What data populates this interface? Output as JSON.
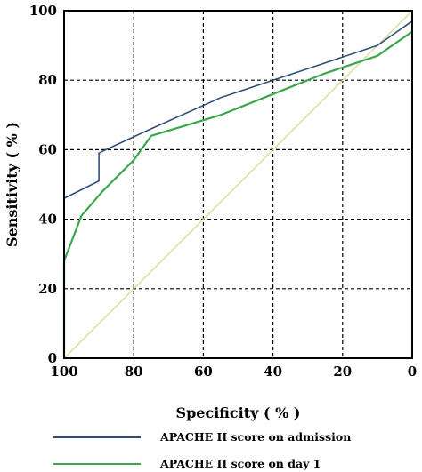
{
  "chart_data": {
    "type": "line",
    "xlabel": "Specificity ( % )",
    "ylabel": "Sensitivity ( % )",
    "xlim": [
      100,
      0
    ],
    "ylim": [
      0,
      100
    ],
    "x_reversed": true,
    "xticks": [
      100,
      80,
      60,
      40,
      20,
      0
    ],
    "yticks": [
      0,
      20,
      40,
      60,
      80,
      100
    ],
    "grid": true,
    "grid_style": "dashed",
    "legend_position": "bottom",
    "reference_line": {
      "color": "#d8dc9c",
      "points": [
        [
          100,
          0
        ],
        [
          0,
          100
        ]
      ]
    },
    "series": [
      {
        "name": "APACHE II score on admission",
        "color": "#2f4f7a",
        "points": [
          [
            100,
            0
          ],
          [
            100,
            46
          ],
          [
            90,
            51
          ],
          [
            90,
            59
          ],
          [
            88,
            60
          ],
          [
            75,
            66
          ],
          [
            55,
            75
          ],
          [
            40,
            80
          ],
          [
            25,
            85
          ],
          [
            10,
            90
          ],
          [
            0,
            97
          ]
        ]
      },
      {
        "name": "APACHE II score on day 1",
        "color": "#3aa84a",
        "points": [
          [
            100,
            0
          ],
          [
            100,
            28
          ],
          [
            95,
            41
          ],
          [
            89,
            48
          ],
          [
            80,
            57
          ],
          [
            75,
            64
          ],
          [
            55,
            70
          ],
          [
            40,
            76
          ],
          [
            25,
            82
          ],
          [
            10,
            87
          ],
          [
            0,
            94
          ]
        ]
      }
    ]
  }
}
